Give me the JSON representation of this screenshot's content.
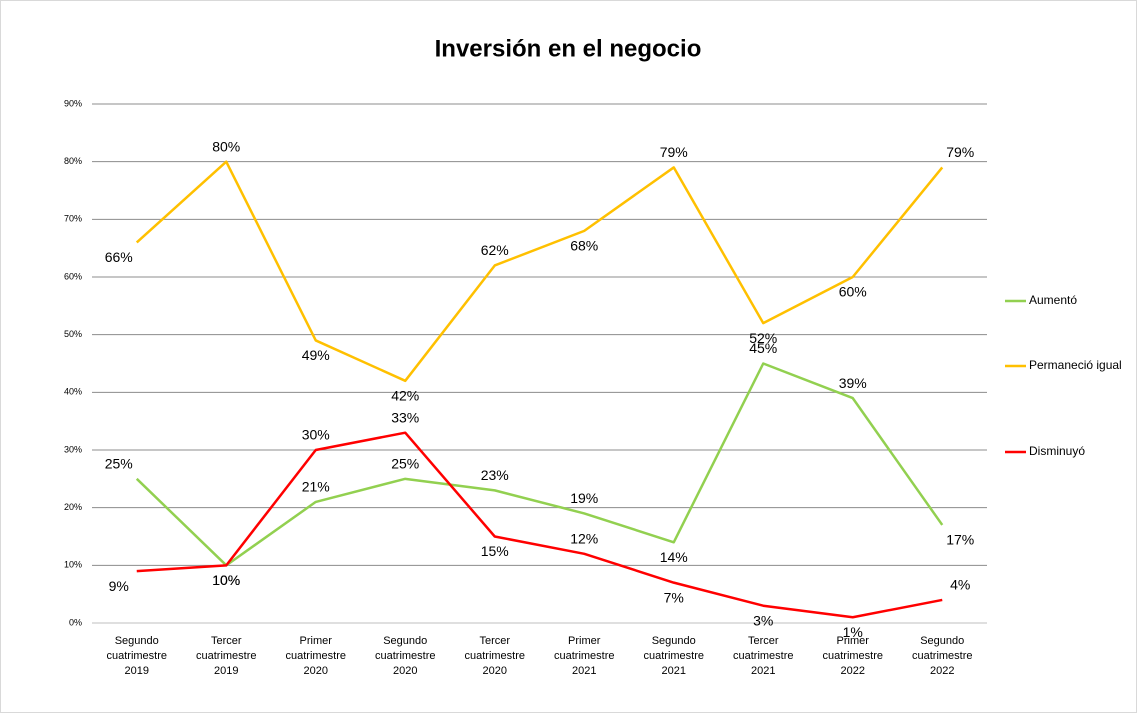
{
  "chart_data": {
    "type": "line",
    "title": "Inversión en el negocio",
    "categories": [
      "Segundo cuatrimestre 2019",
      "Tercer cuatrimestre 2019",
      "Primer cuatrimestre 2020",
      "Segundo cuatrimestre 2020",
      "Tercer cuatrimestre 2020",
      "Primer cuatrimestre 2021",
      "Segundo cuatrimestre 2021",
      "Tercer cuatrimestre 2021",
      "Primer cuatrimestre 2022",
      "Segundo cuatrimestre 2022"
    ],
    "series": [
      {
        "name": "Aumentó",
        "color": "#92d050",
        "values": [
          25,
          10,
          21,
          25,
          23,
          19,
          14,
          45,
          39,
          17
        ],
        "value_labels": [
          "25%",
          "10%",
          "21%",
          "25%",
          "23%",
          "19%",
          "14%",
          "45%",
          "39%",
          "17%"
        ]
      },
      {
        "name": "Permaneció igual",
        "color": "#ffc000",
        "values": [
          66,
          80,
          49,
          42,
          62,
          68,
          79,
          52,
          60,
          79
        ],
        "value_labels": [
          "66%",
          "80%",
          "49%",
          "42%",
          "62%",
          "68%",
          "79%",
          "52%",
          "60%",
          "79%"
        ]
      },
      {
        "name": "Disminuyó",
        "color": "#ff0000",
        "values": [
          9,
          10,
          30,
          33,
          15,
          12,
          7,
          3,
          1,
          4
        ],
        "value_labels": [
          "9%",
          "10%",
          "30%",
          "33%",
          "15%",
          "12%",
          "7%",
          "3%",
          "1%",
          "4%"
        ]
      }
    ],
    "ylim": [
      0,
      90
    ],
    "yticks": [
      {
        "value": 0,
        "label": "0%"
      },
      {
        "value": 10,
        "label": "10%"
      },
      {
        "value": 20,
        "label": "20%"
      },
      {
        "value": 30,
        "label": "30%"
      },
      {
        "value": 40,
        "label": "40%"
      },
      {
        "value": 50,
        "label": "50%"
      },
      {
        "value": 60,
        "label": "60%"
      },
      {
        "value": 70,
        "label": "70%"
      },
      {
        "value": 80,
        "label": "80%"
      },
      {
        "value": 90,
        "label": "90%"
      }
    ],
    "grid": true,
    "legend": "right"
  }
}
